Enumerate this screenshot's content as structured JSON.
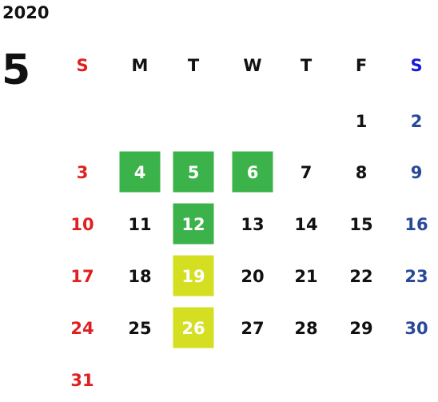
{
  "year": "2020",
  "month": "5",
  "weekdays": [
    "S",
    "M",
    "T",
    "W",
    "T",
    "F",
    "S"
  ],
  "colors": {
    "sunday": "#e02020",
    "saturday_header": "#1a1ad8",
    "saturday": "#2a4898",
    "weekday": "#111111",
    "highlight_text": "#ffffff"
  },
  "weeks": [
    [
      null,
      null,
      null,
      null,
      null,
      1,
      2
    ],
    [
      3,
      {
        "day": 4,
        "bg": "#3cb34a"
      },
      {
        "day": 5,
        "bg": "#3cb34a"
      },
      {
        "day": 6,
        "bg": "#3cb34a"
      },
      7,
      8,
      9
    ],
    [
      10,
      11,
      {
        "day": 12,
        "bg": "#3cb34a"
      },
      13,
      14,
      15,
      16
    ],
    [
      17,
      18,
      {
        "day": 19,
        "bg": "#d4df22"
      },
      20,
      21,
      22,
      23
    ],
    [
      24,
      25,
      {
        "day": 26,
        "bg": "#d4df22"
      },
      27,
      28,
      29,
      30
    ],
    [
      31,
      null,
      null,
      null,
      null,
      null,
      null
    ]
  ]
}
